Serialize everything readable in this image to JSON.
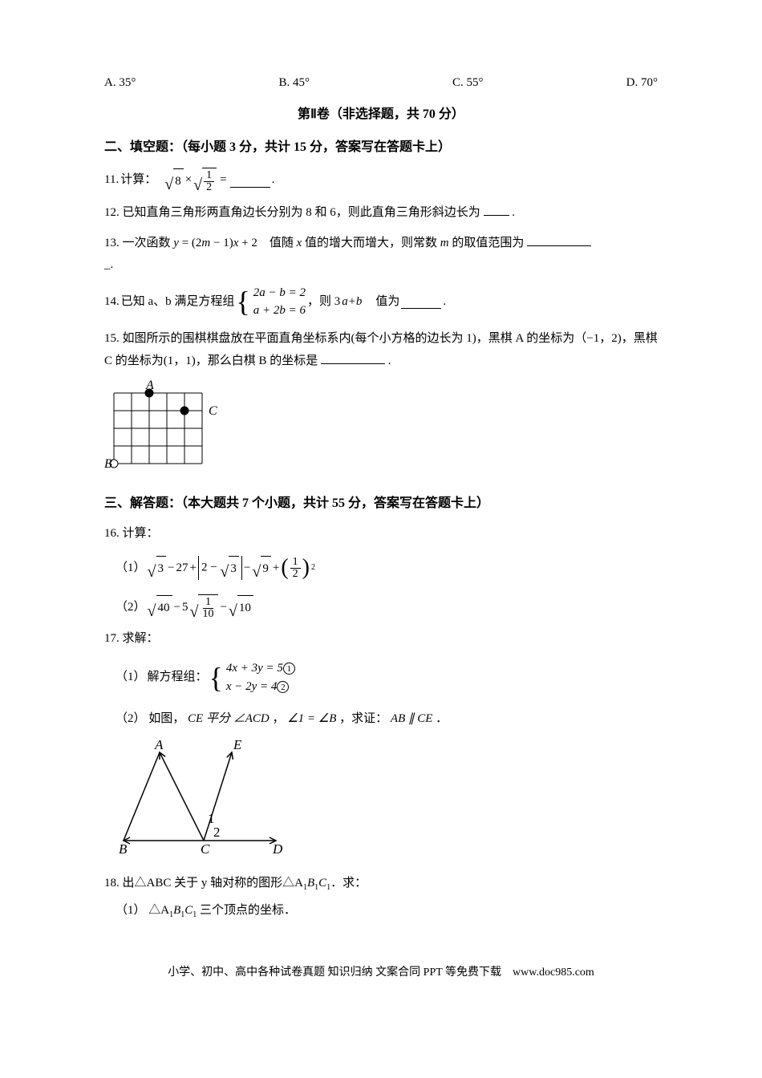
{
  "mcOptions": {
    "a": "A. 35°",
    "b": "B. 45°",
    "c": "C. 55°",
    "d": "D. 70°"
  },
  "paper2Title": "第Ⅱ卷（非选择题，共 70 分）",
  "section2Head": "二、填空题：（每小题 3 分，共计 15 分，答案写在答题卡上）",
  "q11": {
    "num": "11.",
    "label": "计算：",
    "eq_a": "8",
    "eq_b_num": "1",
    "eq_b_den": "2",
    "eq_op": "=",
    "tail": "."
  },
  "q12": {
    "num": "12.",
    "text": "已知直角三角形两直角边长分别为 8 和 6，则此直角三角形斜边长为 ",
    "tail": "."
  },
  "q13": {
    "num": "13.",
    "pre": "一次函数",
    "y": "y",
    "eq1": " = (2",
    "m": "m",
    "eq2": " − 1)",
    "x": "x",
    "eq3": " + 2　值随 ",
    "xvar": "x",
    "post": " 值的增大而增大，则常数 ",
    "mvar": "m",
    "post2": " 的取值范围为",
    "underscore": "_."
  },
  "q14": {
    "num": "14.",
    "pre": "已知 a、b 满足方程组",
    "r1": "2a − b = 2",
    "r2": "a + 2b = 6",
    "mid": "，则 3",
    "ab": "a+b",
    "post": "　值为",
    "tail": "."
  },
  "q15": {
    "num": "15.",
    "text": "如图所示的围棋棋盘放在平面直角坐标系内(每个小方格的边长为 1)，黑棋 A 的坐标为（−1，2)，黑棋 C 的坐标为(1，1)，那么白棋 B 的坐标是",
    "tail": ".",
    "labels": {
      "A": "A",
      "B": "B",
      "C": "C"
    },
    "grid": {
      "cols": 5,
      "rows": 4,
      "cell": 22
    },
    "blackStones": [
      {
        "col": 2,
        "row": 0
      },
      {
        "col": 4,
        "row": 1
      }
    ],
    "whiteStones": [
      {
        "col": 0,
        "row": 4
      }
    ],
    "lineColor": "#000000",
    "fillBlack": "#000000",
    "fillWhite": "#ffffff"
  },
  "section3Head": "三、解答题：（本大题共 7 个小题，共计 55 分，答案写在答题卡上）",
  "q16": {
    "num": "16.",
    "label": "计算：",
    "p1": {
      "idx": "（1）",
      "a": "3",
      "b": "27",
      "c_in": "3",
      "d": "9",
      "frac_num": "1",
      "frac_den": "2",
      "exp": "2"
    },
    "p2": {
      "idx": "（2）",
      "a": "40",
      "coef": "5",
      "frac_num": "1",
      "frac_den": "10",
      "c": "10"
    }
  },
  "q17": {
    "num": "17.",
    "label": "求解：",
    "p1": {
      "idx": "（1）",
      "pre": "解方程组：",
      "r1_l": "4x + 3y = 5",
      "r2_l": "x − 2y = 4",
      "c1": "1",
      "c2": "2"
    },
    "p2": {
      "idx": "（2）",
      "pre": "如图，",
      "seg1": "CE 平分 ∠ACD",
      "comma": "，",
      "seg2": "∠1 = ∠B",
      "comma2": "，求证：",
      "seg3": "AB ∥ CE",
      "tail": "．"
    },
    "fig": {
      "A": "A",
      "E": "E",
      "B": "B",
      "C": "C",
      "D": "D",
      "one": "1",
      "two": "2",
      "lineColor": "#000000"
    }
  },
  "q18": {
    "num": "18.",
    "pre": "出△ABC 关于 y 轴对称的图形△A",
    "s1": "1",
    "mid1": "B",
    "s2": "1",
    "mid2": "C",
    "s3": "1",
    "post": "．求：",
    "p1": {
      "idx": "（1）",
      "pre": "△A",
      "s1": "1",
      "m1": "B",
      "s2": "1",
      "m2": "C",
      "s3": "1",
      "post": " 三个顶点的坐标．"
    }
  },
  "footer": "小学、初中、高中各种试卷真题  知识归纳  文案合同  PPT 等免费下载　www.doc985.com"
}
